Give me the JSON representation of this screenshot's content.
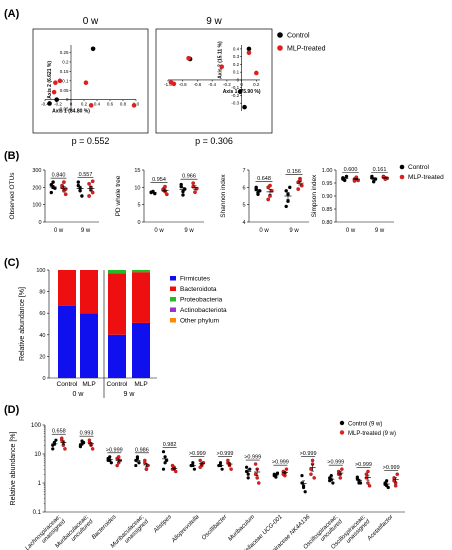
{
  "panel_labels": [
    "(A)",
    "(B)",
    "(C)",
    "(D)"
  ],
  "chart_data": [
    {
      "type": "scatter",
      "panel": "(A)",
      "title": "0 w",
      "xlabel": "Axis 1 (84.80 %)",
      "ylabel": "Axis 2 (6.621 %)",
      "xlim": [
        -0.4,
        1.0
      ],
      "ylim": [
        -0.06,
        0.29
      ],
      "xticks": [
        "-0.4",
        "-0.2",
        "0",
        "0.2",
        "0.4",
        "0.6",
        "0.8",
        "1.0"
      ],
      "yticks": [
        "-0.05",
        "0",
        "0.05",
        "0.1",
        "0.15",
        "0.2",
        "0.25"
      ],
      "p_value": "p = 0.552",
      "series": [
        {
          "name": "Control",
          "color": "#000000",
          "x": [
            0.34,
            -0.22,
            -0.33
          ],
          "y": [
            0.27,
            0.0,
            -0.02
          ]
        },
        {
          "name": "MLP-treated",
          "color": "#e02020",
          "x": [
            -0.17,
            -0.24,
            -0.26,
            0.23,
            0.31,
            0.97
          ],
          "y": [
            0.1,
            0.09,
            0.04,
            0.09,
            -0.03,
            -0.03
          ]
        }
      ]
    },
    {
      "type": "scatter",
      "panel": "(A)",
      "title": "9 w",
      "xlabel": "Axis 1 (75.90 %)",
      "ylabel": "Axis 2 (15.11 %)",
      "xlim": [
        -1.0,
        0.25
      ],
      "ylim": [
        -0.4,
        0.45
      ],
      "xticks": [
        "-1.0",
        "-0.8",
        "-0.6",
        "-0.4",
        "-0.2",
        "0",
        "0.2"
      ],
      "yticks": [
        "-0.3",
        "-0.2",
        "-0.1",
        "0",
        "0.1",
        "0.2",
        "0.3",
        "0.4"
      ],
      "p_value": "p = 0.306",
      "series": [
        {
          "name": "Control",
          "color": "#000000",
          "x": [
            -0.7,
            0.1,
            -0.02,
            0.04
          ],
          "y": [
            0.27,
            0.4,
            -0.15,
            -0.35
          ]
        },
        {
          "name": "MLP-treated",
          "color": "#e02020",
          "x": [
            -0.72,
            -0.27,
            -0.96,
            -0.92,
            0.2,
            0.1
          ],
          "y": [
            0.28,
            0.17,
            -0.03,
            -0.05,
            0.09,
            0.35
          ]
        }
      ],
      "legend": [
        "Control",
        "MLP-treated"
      ]
    },
    {
      "type": "scatter",
      "panel": "(B)",
      "ylabel": "Observed OTUs",
      "ylim": [
        0,
        300
      ],
      "yticks": [
        "0",
        "100",
        "200",
        "300"
      ],
      "categories": [
        "0 w",
        "9 w"
      ],
      "p_values": [
        "0.840",
        "0.557"
      ],
      "series": [
        {
          "name": "Control",
          "values": [
            [
              215,
              200,
              195,
              170,
              230
            ],
            [
              210,
              180,
              150,
              230,
              195
            ]
          ]
        },
        {
          "name": "MLP-treated",
          "values": [
            [
              210,
              180,
              160,
              200,
              230,
              190
            ],
            [
              220,
              185,
              170,
              150,
              200,
              235
            ]
          ]
        }
      ]
    },
    {
      "type": "scatter",
      "panel": "(B)",
      "ylabel": "PD whole tree",
      "ylim": [
        0,
        15
      ],
      "yticks": [
        "0",
        "5",
        "10",
        "15"
      ],
      "categories": [
        "0 w",
        "9 w"
      ],
      "p_values": [
        "0.954",
        "0.966"
      ],
      "series": [
        {
          "name": "Control",
          "values": [
            [
              8.5,
              8.8,
              8.2,
              8.6
            ],
            [
              10.8,
              7.8,
              9.5,
              10.2,
              8.8
            ]
          ]
        },
        {
          "name": "MLP-treated",
          "values": [
            [
              9.5,
              8.8,
              8.0,
              9.2,
              10.2
            ],
            [
              10.2,
              8.6,
              9.6,
              11.2
            ]
          ]
        }
      ]
    },
    {
      "type": "scatter",
      "panel": "(B)",
      "ylabel": "Shannon index",
      "ylim": [
        4,
        7
      ],
      "yticks": [
        "4",
        "5",
        "6",
        "7"
      ],
      "categories": [
        "0 w",
        "9 w"
      ],
      "p_values": [
        "0.648",
        "0.156"
      ],
      "series": [
        {
          "name": "Control",
          "values": [
            [
              5.9,
              5.7,
              5.8,
              6.0,
              5.6
            ],
            [
              5.8,
              5.2,
              6.0,
              4.9,
              5.6
            ]
          ]
        },
        {
          "name": "MLP-treated",
          "values": [
            [
              6.0,
              5.5,
              5.8,
              5.3,
              6.1
            ],
            [
              6.3,
              6.5,
              6.1,
              5.9,
              6.4
            ]
          ]
        }
      ]
    },
    {
      "type": "scatter",
      "panel": "(B)",
      "ylabel": "Simpson index",
      "ylim": [
        0.8,
        1.0
      ],
      "yticks": [
        "0.80",
        "0.85",
        "0.90",
        "0.95",
        "1.00"
      ],
      "categories": [
        "0 w",
        "9 w"
      ],
      "p_values": [
        "0.600",
        "0.161"
      ],
      "series": [
        {
          "name": "Control",
          "values": [
            [
              0.97,
              0.96,
              0.975,
              0.965
            ],
            [
              0.97,
              0.955,
              0.965,
              0.975
            ]
          ]
        },
        {
          "name": "MLP-treated",
          "values": [
            [
              0.965,
              0.97,
              0.96,
              0.958,
              0.972
            ],
            [
              0.975,
              0.97,
              0.968,
              0.972,
              0.965
            ]
          ]
        }
      ],
      "legend": [
        "Control",
        "MLP-treated"
      ]
    },
    {
      "type": "bar",
      "panel": "(C)",
      "stacked": true,
      "ylabel": "Relative abundance [%]",
      "ylim": [
        0,
        100
      ],
      "yticks": [
        "0",
        "20",
        "40",
        "60",
        "80",
        "100"
      ],
      "categories": [
        "Control",
        "MLP",
        "Control",
        "MLP"
      ],
      "groups": [
        "0 w",
        "9 w"
      ],
      "series": [
        {
          "name": "Firmicutes",
          "color": "#1010ee",
          "values": [
            67,
            60,
            40,
            51
          ]
        },
        {
          "name": "Bacteroidota",
          "color": "#ee1010",
          "values": [
            33,
            40,
            57,
            47
          ]
        },
        {
          "name": "Proteobacteria",
          "color": "#22bb22",
          "values": [
            0,
            0,
            3,
            2
          ]
        },
        {
          "name": "Actinobacteriota",
          "color": "#9933cc",
          "values": [
            0,
            0,
            0,
            0
          ]
        },
        {
          "name": "Other phylum",
          "color": "#ff8800",
          "values": [
            0,
            0,
            0,
            0
          ]
        }
      ]
    },
    {
      "type": "scatter",
      "panel": "(D)",
      "log_y": true,
      "ylabel": "Relative abundance [%]",
      "ylim": [
        0.1,
        100
      ],
      "yticks": [
        "0.1",
        "1",
        "10",
        "100"
      ],
      "categories": [
        "Lachnospiraceae; unassigned",
        "Muribaculaceae; uncultured",
        "Bacteroides",
        "Muribaculaceae; unassigned",
        "Alistipes",
        "Alloprevotella",
        "Oscillibacter",
        "Muribaculum",
        "Prevotellaceae UCG-001",
        "Lachnospiraceae NK4A136",
        "Oscillospiraceae; uncultured",
        "Oscillospiraceae; unassigned",
        "Acetatifactor"
      ],
      "p_values": [
        "0.658",
        "0.993",
        ">0.999",
        "0.986",
        "0.982",
        ">0.999",
        ">0.999",
        ">0.999",
        ">0.999",
        ">0.999",
        ">0.999",
        ">0.999",
        ">0.999"
      ],
      "series": [
        {
          "name": "Control (9 w)",
          "values": [
            [
              20,
              25,
              30,
              15,
              22
            ],
            [
              20,
              28,
              25,
              18,
              22
            ],
            [
              6,
              8,
              5,
              7,
              6
            ],
            [
              6,
              8,
              5,
              4,
              7
            ],
            [
              12,
              5,
              6,
              3,
              8
            ],
            [
              4,
              5,
              3,
              4,
              4
            ],
            [
              4,
              5,
              3,
              4,
              4
            ],
            [
              3.5,
              2.0,
              3.0,
              2.5,
              1.5
            ],
            [
              2.0,
              1.6,
              2.2,
              1.8,
              1.9
            ],
            [
              1.8,
              0.8,
              0.5,
              1.0,
              0.7
            ],
            [
              1.2,
              1.8,
              1.0,
              1.5,
              1.3
            ],
            [
              1.6,
              1.2,
              1.0,
              1.4,
              1.0
            ],
            [
              1.0,
              0.8,
              0.7,
              0.9,
              1.2
            ]
          ]
        },
        {
          "name": "MLP-treated (9 w)",
          "values": [
            [
              30,
              20,
              15,
              35,
              25
            ],
            [
              25,
              20,
              15,
              30,
              22
            ],
            [
              7,
              5,
              6,
              4,
              8
            ],
            [
              5,
              3,
              4,
              6,
              3
            ],
            [
              4,
              3,
              2.5,
              3,
              3.5
            ],
            [
              6,
              4,
              5,
              3.5,
              4.5
            ],
            [
              5,
              4,
              3,
              6,
              4.5
            ],
            [
              4.5,
              1.5,
              1.0,
              2.0,
              3.0
            ],
            [
              2.5,
              1.8,
              3.0,
              2.0,
              2.2
            ],
            [
              3.0,
              4.5,
              1.5,
              2.0,
              6.0
            ],
            [
              2.0,
              1.5,
              3.0,
              2.5,
              2.0
            ],
            [
              2.0,
              1.0,
              0.8,
              1.5,
              2.5
            ],
            [
              1.5,
              1.0,
              2.0,
              1.2,
              0.8
            ]
          ]
        }
      ],
      "legend": [
        "Control (9 w)",
        "MLP-treated (9 w)"
      ]
    }
  ]
}
